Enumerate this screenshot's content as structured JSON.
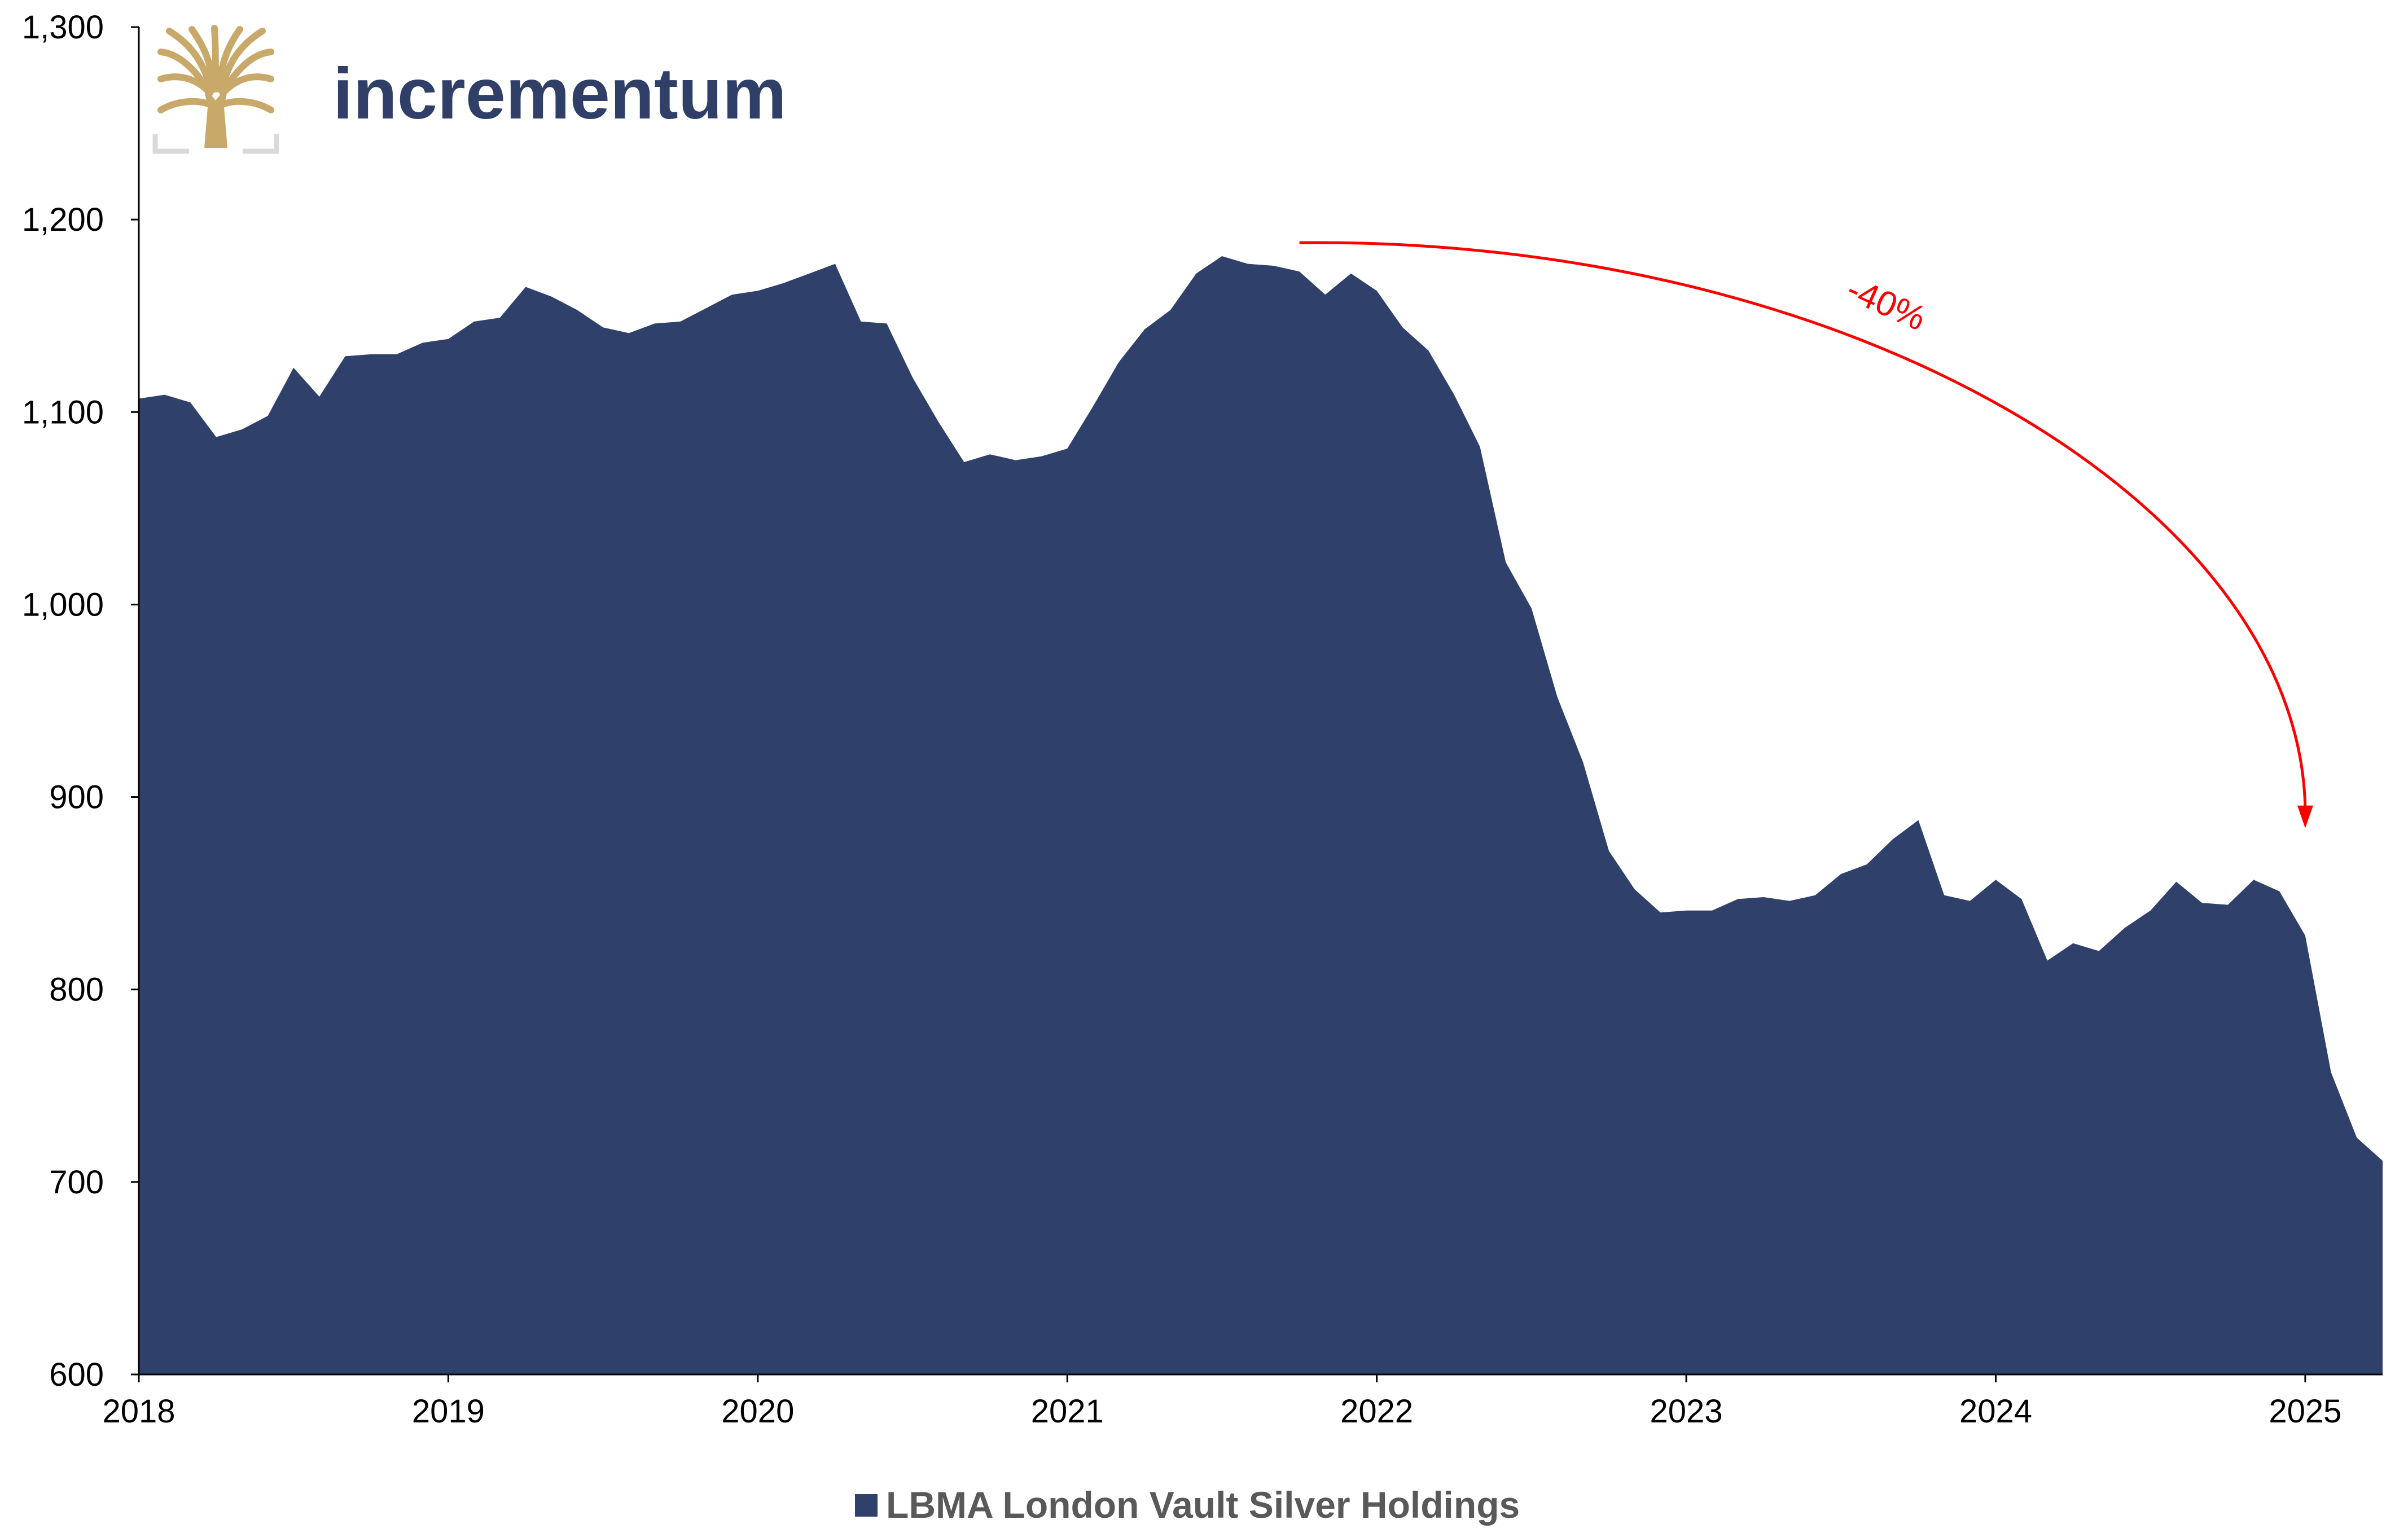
{
  "brand": {
    "name": "incrementum",
    "colors": {
      "text": "#2f3f68",
      "logo": "#c8a96a",
      "logo_frame": "#d9d9d9"
    }
  },
  "chart_data": {
    "type": "area",
    "series": [
      {
        "name": "LBMA London Vault Silver Holdings",
        "color": "#2f406a",
        "x": [
          "2018-01",
          "2018-02",
          "2018-03",
          "2018-04",
          "2018-05",
          "2018-06",
          "2018-07",
          "2018-08",
          "2018-09",
          "2018-10",
          "2018-11",
          "2018-12",
          "2019-01",
          "2019-02",
          "2019-03",
          "2019-04",
          "2019-05",
          "2019-06",
          "2019-07",
          "2019-08",
          "2019-09",
          "2019-10",
          "2019-11",
          "2019-12",
          "2020-01",
          "2020-02",
          "2020-03",
          "2020-04",
          "2020-05",
          "2020-06",
          "2020-07",
          "2020-08",
          "2020-09",
          "2020-10",
          "2020-11",
          "2020-12",
          "2021-01",
          "2021-02",
          "2021-03",
          "2021-04",
          "2021-05",
          "2021-06",
          "2021-07",
          "2021-08",
          "2021-09",
          "2021-10",
          "2021-11",
          "2021-12",
          "2022-01",
          "2022-02",
          "2022-03",
          "2022-04",
          "2022-05",
          "2022-06",
          "2022-07",
          "2022-08",
          "2022-09",
          "2022-10",
          "2022-11",
          "2022-12",
          "2023-01",
          "2023-02",
          "2023-03",
          "2023-04",
          "2023-05",
          "2023-06",
          "2023-07",
          "2023-08",
          "2023-09",
          "2023-10",
          "2023-11",
          "2023-12",
          "2024-01",
          "2024-02",
          "2024-03",
          "2024-04",
          "2024-05",
          "2024-06",
          "2024-07",
          "2024-08",
          "2024-09",
          "2024-10",
          "2024-11",
          "2024-12",
          "2025-01",
          "2025-02",
          "2025-03",
          "2025-04"
        ],
        "values": [
          1107,
          1109,
          1105,
          1087,
          1091,
          1098,
          1123,
          1108,
          1129,
          1130,
          1130,
          1136,
          1138,
          1147,
          1149,
          1165,
          1160,
          1153,
          1144,
          1141,
          1146,
          1147,
          1154,
          1161,
          1163,
          1167,
          1172,
          1177,
          1147,
          1146,
          1118,
          1095,
          1074,
          1078,
          1075,
          1077,
          1081,
          1103,
          1126,
          1143,
          1153,
          1172,
          1181,
          1177,
          1176,
          1173,
          1161,
          1172,
          1163,
          1144,
          1132,
          1109,
          1082,
          1022,
          998,
          952,
          918,
          872,
          852,
          840,
          841,
          841,
          847,
          848,
          846,
          849,
          860,
          865,
          878,
          888,
          849,
          846,
          857,
          847,
          815,
          824,
          820,
          832,
          841,
          856,
          845,
          844,
          857,
          851,
          828,
          757,
          723,
          711
        ]
      }
    ],
    "x_tick_labels": [
      "2018",
      "2019",
      "2020",
      "2021",
      "2022",
      "2023",
      "2024",
      "2025"
    ],
    "y_tick_labels": [
      "600",
      "700",
      "800",
      "900",
      "1,000",
      "1,100",
      "1,200",
      "1,300"
    ],
    "ylim": [
      600,
      1300
    ],
    "xlim": [
      "2018-01",
      "2025-04"
    ],
    "grid": false,
    "legend": {
      "position": "bottom",
      "label": "LBMA London Vault Silver Holdings"
    },
    "annotations": [
      {
        "text": "-40%",
        "color": "#ff0000",
        "from": [
          "2021-10",
          1188
        ],
        "to": [
          "2025-01",
          885
        ]
      }
    ]
  }
}
